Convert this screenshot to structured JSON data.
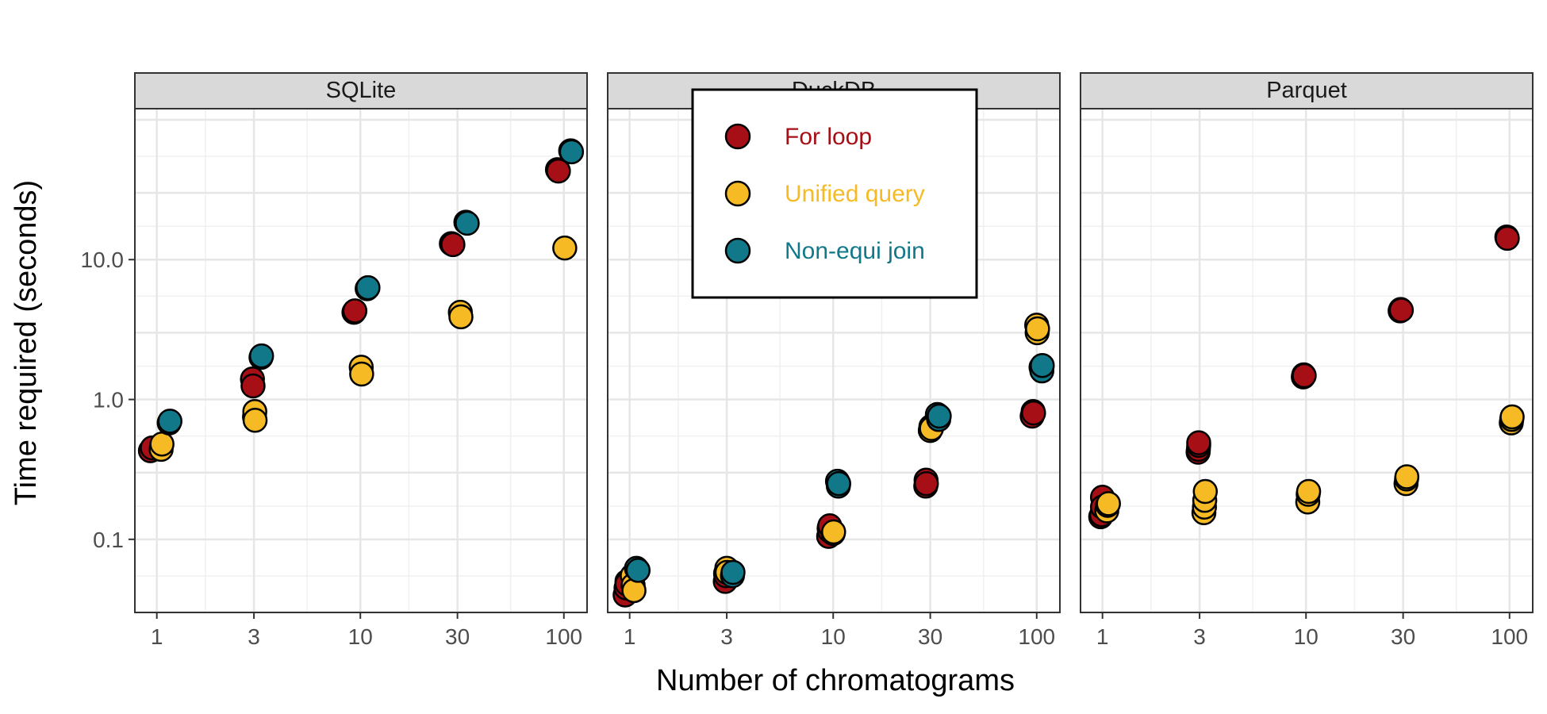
{
  "chart_data": {
    "type": "scatter",
    "xlabel": "Number of chromatograms",
    "ylabel": "Time required (seconds)",
    "x_scale": "log10",
    "y_scale": "log10",
    "x_ticks": [
      1,
      3,
      10,
      30,
      100
    ],
    "x_tick_labels": [
      "1",
      "3",
      "10",
      "30",
      "100"
    ],
    "y_ticks": [
      0.1,
      1,
      10
    ],
    "y_tick_labels": [
      "0.1",
      "1.0",
      "10.0"
    ],
    "xlim": [
      0.78,
      130
    ],
    "ylim": [
      0.03,
      120
    ],
    "grid": true,
    "legend_position": "inside (DuckDB panel, top)",
    "series_styles": [
      {
        "name": "For loop",
        "color": "#A50F15"
      },
      {
        "name": "Unified query",
        "color": "#F5BA24"
      },
      {
        "name": "Non-equi join",
        "color": "#11788A"
      }
    ],
    "panels": [
      {
        "label": "SQLite",
        "series": [
          {
            "name": "For loop",
            "points": [
              [
                0.93,
                0.43
              ],
              [
                0.95,
                0.45
              ],
              [
                2.95,
                1.4
              ],
              [
                2.97,
                1.25
              ],
              [
                9.3,
                4.2
              ],
              [
                9.4,
                4.3
              ],
              [
                28,
                13
              ],
              [
                28.5,
                12.8
              ],
              [
                93,
                44
              ],
              [
                94,
                43
              ]
            ]
          },
          {
            "name": "Unified query",
            "points": [
              [
                1.05,
                0.44
              ],
              [
                1.06,
                0.48
              ],
              [
                3.02,
                0.75
              ],
              [
                3.03,
                0.82
              ],
              [
                3.04,
                0.71
              ],
              [
                10.1,
                1.7
              ],
              [
                10.15,
                1.52
              ],
              [
                31,
                4.2
              ],
              [
                31.2,
                3.9
              ],
              [
                101,
                12.1
              ]
            ]
          },
          {
            "name": "Non-equi join",
            "points": [
              [
                1.15,
                0.68
              ],
              [
                1.16,
                0.7
              ],
              [
                3.25,
                2.0
              ],
              [
                3.27,
                2.05
              ],
              [
                10.8,
                6.2
              ],
              [
                10.9,
                6.3
              ],
              [
                33,
                18.5
              ],
              [
                33.5,
                18.2
              ],
              [
                108,
                60
              ],
              [
                109,
                59
              ]
            ]
          }
        ]
      },
      {
        "label": "DuckDB",
        "series": [
          {
            "name": "For loop",
            "points": [
              [
                0.95,
                0.04
              ],
              [
                0.96,
                0.045
              ],
              [
                0.97,
                0.05
              ],
              [
                0.97,
                0.048
              ],
              [
                2.95,
                0.05
              ],
              [
                2.96,
                0.057
              ],
              [
                2.97,
                0.055
              ],
              [
                9.5,
                0.105
              ],
              [
                9.55,
                0.12
              ],
              [
                9.6,
                0.115
              ],
              [
                9.62,
                0.125
              ],
              [
                28.5,
                0.24
              ],
              [
                28.6,
                0.265
              ],
              [
                28.7,
                0.25
              ],
              [
                95,
                0.76
              ],
              [
                96,
                0.82
              ],
              [
                96.5,
                0.8
              ]
            ]
          },
          {
            "name": "Unified query",
            "points": [
              [
                1.03,
                0.055
              ],
              [
                1.04,
                0.047
              ],
              [
                1.05,
                0.043
              ],
              [
                3.0,
                0.062
              ],
              [
                3.01,
                0.058
              ],
              [
                10.0,
                0.11
              ],
              [
                10.05,
                0.113
              ],
              [
                30,
                0.6
              ],
              [
                30.2,
                0.64
              ],
              [
                30.4,
                0.62
              ],
              [
                100,
                3.4
              ],
              [
                100.5,
                3.0
              ],
              [
                101,
                3.2
              ]
            ]
          },
          {
            "name": "Non-equi join",
            "points": [
              [
                1.08,
                0.062
              ],
              [
                1.1,
                0.06
              ],
              [
                3.2,
                0.055
              ],
              [
                3.22,
                0.058
              ],
              [
                10.5,
                0.26
              ],
              [
                10.6,
                0.24
              ],
              [
                10.65,
                0.25
              ],
              [
                32.5,
                0.78
              ],
              [
                33,
                0.72
              ],
              [
                33.2,
                0.76
              ],
              [
                105,
                1.7
              ],
              [
                106,
                1.6
              ],
              [
                106.5,
                1.75
              ]
            ]
          }
        ]
      },
      {
        "label": "Parquet",
        "series": [
          {
            "name": "For loop",
            "points": [
              [
                0.98,
                0.145
              ],
              [
                0.99,
                0.15
              ],
              [
                1.0,
                0.2
              ],
              [
                1.0,
                0.17
              ],
              [
                2.95,
                0.42
              ],
              [
                2.96,
                0.44
              ],
              [
                2.97,
                0.47
              ],
              [
                2.97,
                0.49
              ],
              [
                9.7,
                1.45
              ],
              [
                9.75,
                1.5
              ],
              [
                9.8,
                1.48
              ],
              [
                29,
                4.3
              ],
              [
                29.2,
                4.4
              ],
              [
                29.4,
                4.35
              ],
              [
                97,
                14.5
              ],
              [
                97.5,
                14.2
              ]
            ]
          },
          {
            "name": "Unified query",
            "points": [
              [
                1.05,
                0.16
              ],
              [
                1.06,
                0.175
              ],
              [
                1.07,
                0.18
              ],
              [
                3.15,
                0.155
              ],
              [
                3.17,
                0.17
              ],
              [
                3.18,
                0.19
              ],
              [
                3.2,
                0.22
              ],
              [
                10.2,
                0.185
              ],
              [
                10.25,
                0.21
              ],
              [
                10.3,
                0.22
              ],
              [
                31,
                0.25
              ],
              [
                31.2,
                0.27
              ],
              [
                31.3,
                0.28
              ],
              [
                102,
                0.68
              ],
              [
                102.5,
                0.72
              ],
              [
                103,
                0.75
              ]
            ]
          }
        ]
      }
    ]
  },
  "legend": {
    "items": [
      {
        "label": "For loop",
        "color": "#A50F15"
      },
      {
        "label": "Unified query",
        "color": "#F5BA24"
      },
      {
        "label": "Non-equi join",
        "color": "#11788A"
      }
    ]
  }
}
